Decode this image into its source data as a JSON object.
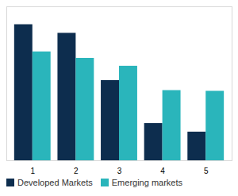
{
  "chart_data": {
    "type": "bar",
    "categories": [
      1,
      2,
      3,
      4,
      5
    ],
    "series": [
      {
        "name": "Developed Markets",
        "color": "#0d2d4e",
        "values": [
          190,
          178,
          112,
          52,
          40
        ]
      },
      {
        "name": "Emerging markets",
        "color": "#2ab5bb",
        "values": [
          152,
          143,
          132,
          98,
          97
        ]
      }
    ],
    "ylim": [
      0,
      215
    ],
    "tick_labels": "x",
    "grid": false,
    "legend": "bottom"
  }
}
